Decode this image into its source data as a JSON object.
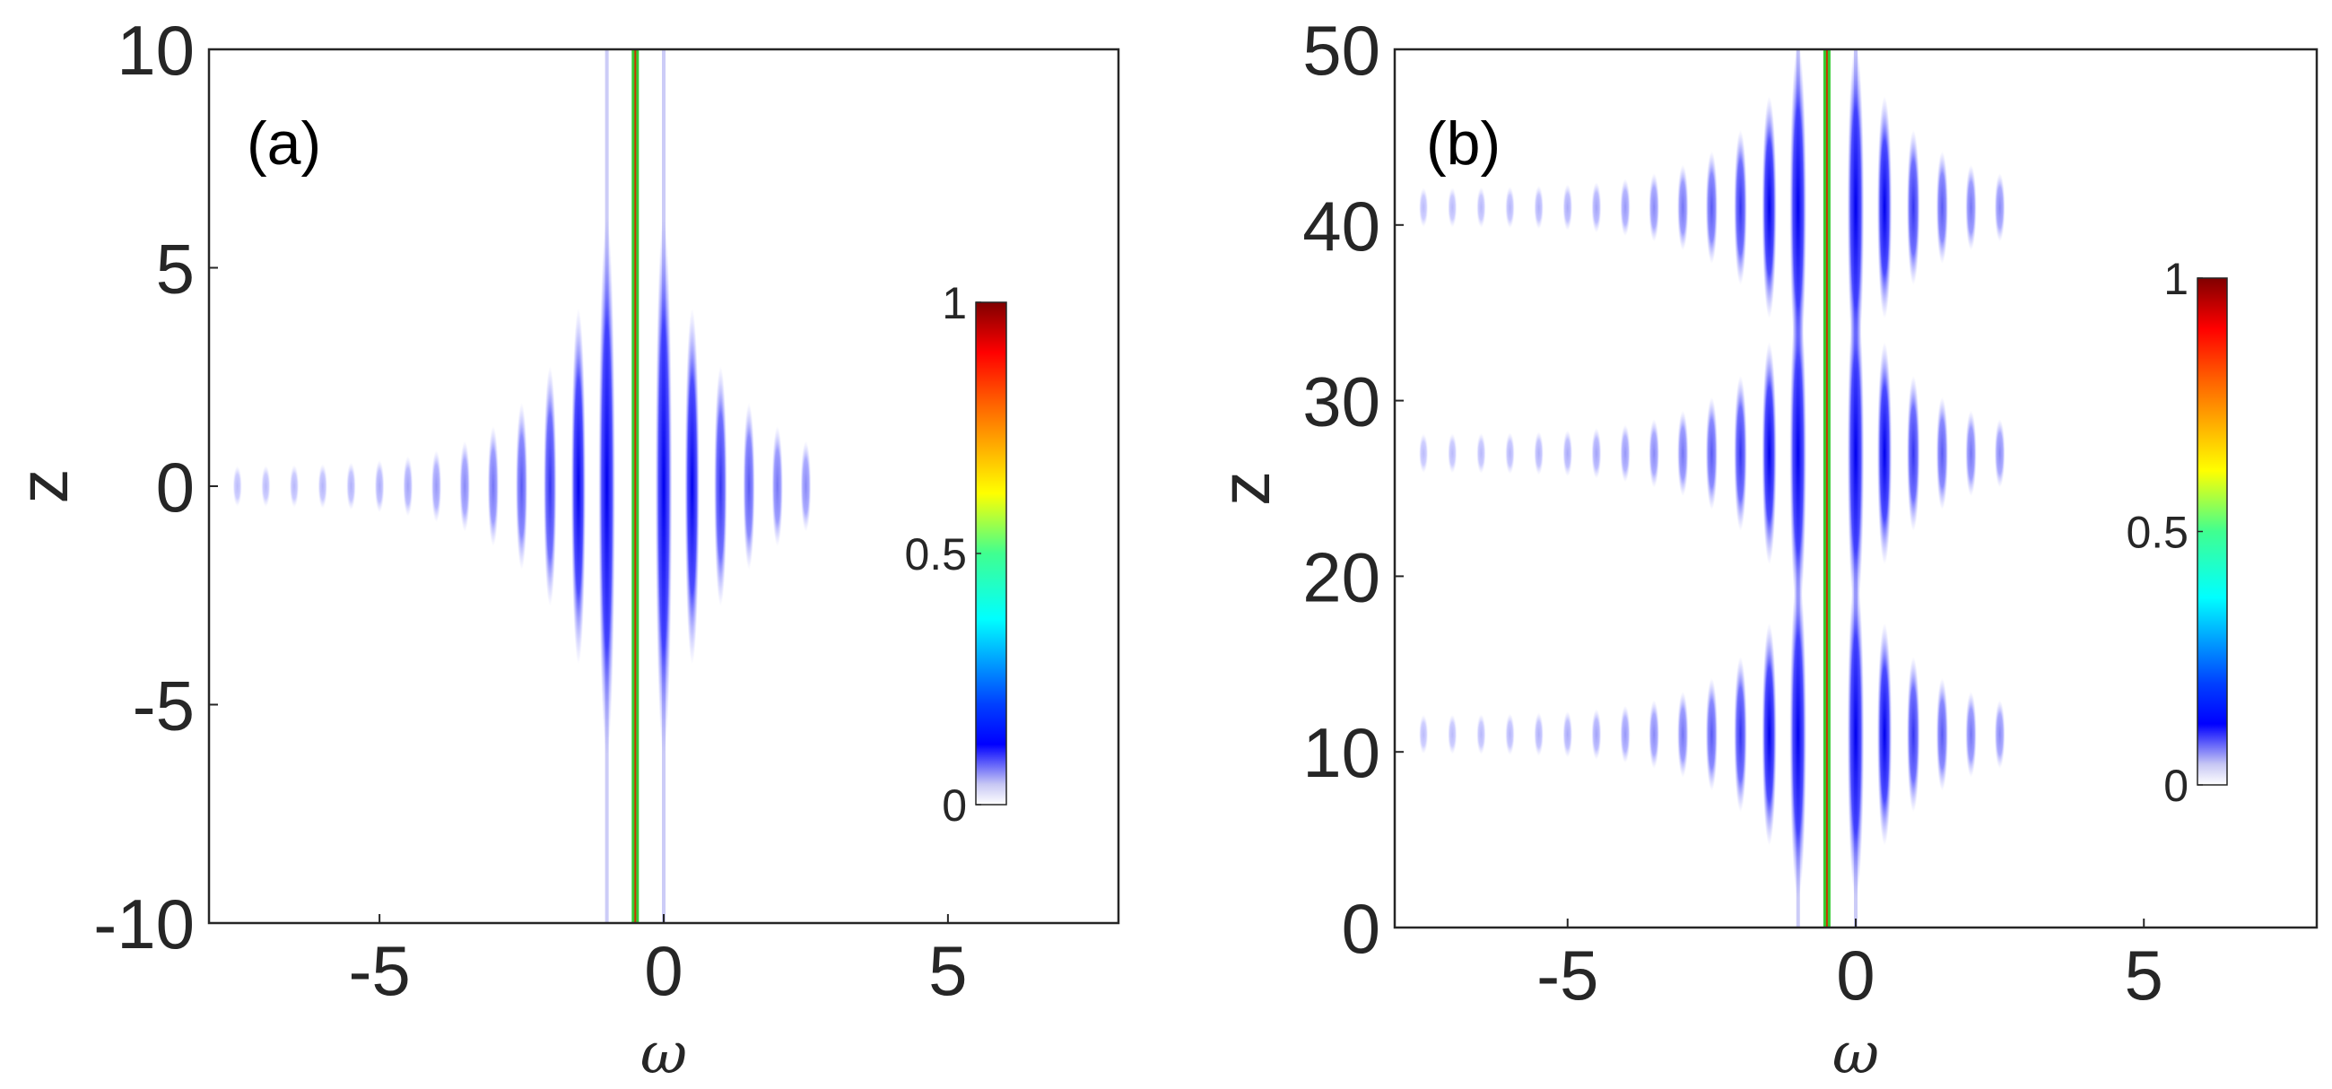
{
  "chart_data": [
    {
      "type": "heatmap",
      "panel_label": "(a)",
      "xlabel": "ω",
      "ylabel": "z",
      "xlim": [
        -8,
        8
      ],
      "ylim": [
        -10,
        10
      ],
      "xticks": [
        "-5",
        "0",
        "5"
      ],
      "xtick_values": [
        -5,
        0,
        5
      ],
      "yticks": [
        "10",
        "5",
        "0",
        "-5",
        "-10"
      ],
      "ytick_values": [
        10,
        5,
        0,
        -5,
        -10
      ],
      "colorbar": {
        "ticks": [
          "1",
          "0.5",
          "0"
        ],
        "tick_values": [
          1,
          0.5,
          0
        ],
        "range": [
          0,
          1
        ],
        "colormap": "jet (white at 0)"
      },
      "central_line_omega": -0.5,
      "sideband_spacing": 0.5,
      "sideband_omega_range": [
        -7.5,
        2.5
      ],
      "burst_z": [
        0
      ]
    },
    {
      "type": "heatmap",
      "panel_label": "(b)",
      "xlabel": "ω",
      "ylabel": "z",
      "xlim": [
        -8,
        8
      ],
      "ylim": [
        0,
        50
      ],
      "xticks": [
        "-5",
        "0",
        "5"
      ],
      "xtick_values": [
        -5,
        0,
        5
      ],
      "yticks": [
        "50",
        "40",
        "30",
        "20",
        "10",
        "0"
      ],
      "ytick_values": [
        50,
        40,
        30,
        20,
        10,
        0
      ],
      "colorbar": {
        "ticks": [
          "1",
          "0.5",
          "0"
        ],
        "tick_values": [
          1,
          0.5,
          0
        ],
        "range": [
          0,
          1
        ],
        "colormap": "jet (white at 0)"
      },
      "central_line_omega": -0.5,
      "sideband_spacing": 0.5,
      "sideband_omega_range": [
        -7.5,
        2.5
      ],
      "burst_z": [
        11,
        27,
        41
      ]
    }
  ]
}
